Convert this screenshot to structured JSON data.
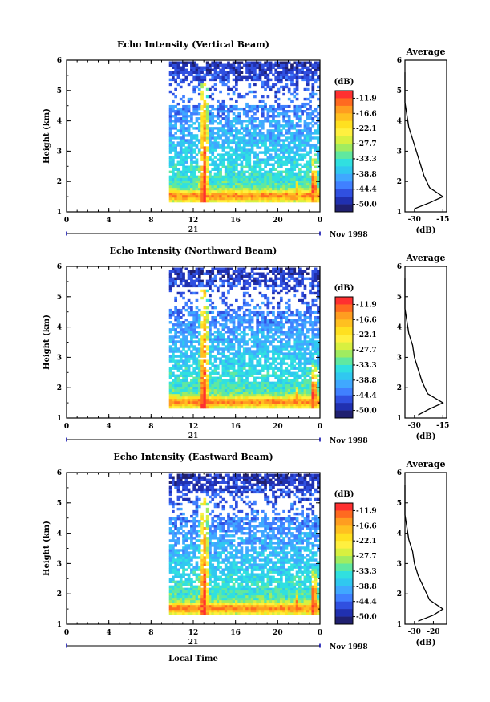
{
  "figure": {
    "xlabel": "Local Time",
    "date_day": "21",
    "date_month": "Nov 1998"
  },
  "colorbar": {
    "unit": "(dB)",
    "ticks": [
      "-11.9",
      "-16.6",
      "-22.1",
      "-27.7",
      "-33.3",
      "-38.8",
      "-44.4",
      "-50.0"
    ],
    "colors": [
      "#ff3030",
      "#ff6a20",
      "#ff9d20",
      "#ffc020",
      "#ffe020",
      "#fff040",
      "#d8f040",
      "#a0ec60",
      "#60e8a0",
      "#30e0e0",
      "#30c8f0",
      "#40a8ff",
      "#4080ff",
      "#3050e0",
      "#2030b0",
      "#202070"
    ]
  },
  "chart_data": [
    {
      "type": "heatmap",
      "title": "Echo Intensity (Vertical Beam)",
      "ylabel": "Height (km)",
      "xlim": [
        0,
        24
      ],
      "ylim": [
        1,
        6
      ],
      "x_ticks": [
        "0",
        "4",
        "8",
        "12",
        "16",
        "20",
        "0"
      ],
      "y_ticks": [
        "1",
        "2",
        "3",
        "4",
        "5",
        "6"
      ],
      "data_start_hour": 9.7,
      "color_scale_db": [
        -50.0,
        -11.9
      ],
      "average_profile": {
        "title": "Average",
        "xlabel": "(dB)",
        "x_ticks": [
          "-30",
          "-15"
        ],
        "y_ticks": [
          "1",
          "2",
          "3",
          "4",
          "5",
          "6"
        ],
        "height_km": [
          1.1,
          1.3,
          1.5,
          1.8,
          2.2,
          2.6,
          3.0,
          3.4,
          3.8,
          4.2,
          4.6,
          5.0,
          5.3,
          5.6
        ],
        "db": [
          -30,
          -22,
          -15,
          -22,
          -25,
          -27,
          -29,
          -31,
          -33,
          -34,
          -35,
          -35,
          -36,
          -35
        ]
      }
    },
    {
      "type": "heatmap",
      "title": "Echo Intensity (Northward Beam)",
      "ylabel": "Height (km)",
      "xlim": [
        0,
        24
      ],
      "ylim": [
        1,
        6
      ],
      "x_ticks": [
        "0",
        "4",
        "8",
        "12",
        "16",
        "20",
        "0"
      ],
      "y_ticks": [
        "1",
        "2",
        "3",
        "4",
        "5",
        "6"
      ],
      "data_start_hour": 9.7,
      "color_scale_db": [
        -50.0,
        -11.9
      ],
      "average_profile": {
        "title": "Average",
        "xlabel": "(dB)",
        "x_ticks": [
          "-30",
          "-15"
        ],
        "y_ticks": [
          "1",
          "2",
          "3",
          "4",
          "5",
          "6"
        ],
        "height_km": [
          1.1,
          1.3,
          1.5,
          1.8,
          2.2,
          2.6,
          3.0,
          3.4,
          3.8,
          4.2,
          4.6,
          5.0,
          5.3,
          5.6
        ],
        "db": [
          -28,
          -22,
          -15,
          -23,
          -26,
          -28,
          -30,
          -31,
          -33,
          -34,
          -35,
          -35,
          -36,
          -35
        ]
      }
    },
    {
      "type": "heatmap",
      "title": "Echo Intensity (Eastward Beam)",
      "ylabel": "Height (km)",
      "xlim": [
        0,
        24
      ],
      "ylim": [
        1,
        6
      ],
      "x_ticks": [
        "0",
        "4",
        "8",
        "12",
        "16",
        "20",
        "0"
      ],
      "y_ticks": [
        "1",
        "2",
        "3",
        "4",
        "5",
        "6"
      ],
      "data_start_hour": 9.7,
      "color_scale_db": [
        -50.0,
        -11.9
      ],
      "average_profile": {
        "title": "Average",
        "xlabel": "(dB)",
        "x_ticks": [
          "-30",
          "-20"
        ],
        "y_ticks": [
          "1",
          "2",
          "3",
          "4",
          "5",
          "6"
        ],
        "height_km": [
          1.1,
          1.3,
          1.5,
          1.8,
          2.2,
          2.6,
          3.0,
          3.4,
          3.8,
          4.2,
          4.6,
          5.0,
          5.3,
          5.6
        ],
        "db": [
          -28,
          -20,
          -15,
          -22,
          -25,
          -28,
          -30,
          -31,
          -33,
          -34,
          -35,
          -35,
          -36,
          -35
        ]
      }
    }
  ]
}
